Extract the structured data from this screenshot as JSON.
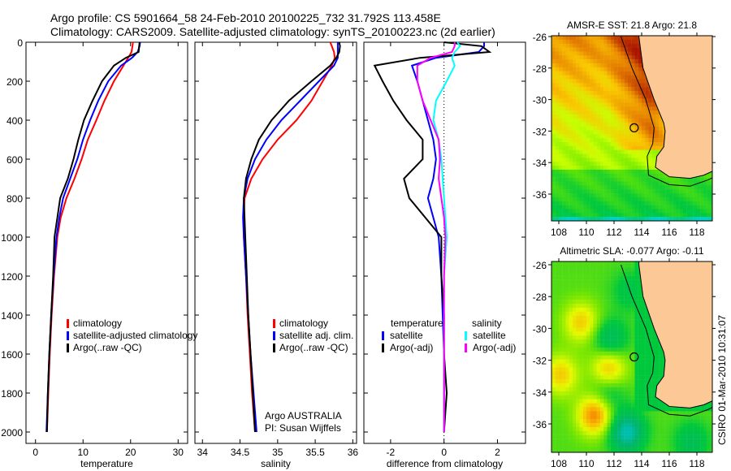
{
  "header": {
    "line1": "Argo profile: CS 5901664_58 24-Feb-2010 20100225_732 31.792S 113.458E",
    "line2": "Climatology: CARS2009. Satellite-adjusted climatology: synTS_20100223.nc (2d earlier)"
  },
  "footer_stamp": "CSIRO 01-Mar-2010 10:31:07",
  "colors": {
    "climatology": "#ff0000",
    "satellite": "#0000ff",
    "argo": "#000000",
    "sal_sat": "#00ffff",
    "sal_argo": "#ff00ff",
    "land": "#fbc896"
  },
  "chart_data": [
    {
      "type": "line",
      "xlabel": "temperature",
      "xlim": [
        -2,
        32
      ],
      "ylim": [
        0,
        2050
      ],
      "xticks": [
        "0",
        "10",
        "20",
        "30"
      ],
      "yticks": [
        "0",
        "200",
        "400",
        "600",
        "800",
        "1000",
        "1200",
        "1400",
        "1600",
        "1800",
        "2000"
      ],
      "legend": [
        "climatology",
        "satellite-adjusted climatology",
        "Argo(..raw -QC)"
      ],
      "depth": [
        0,
        20,
        50,
        80,
        120,
        200,
        300,
        400,
        500,
        600,
        700,
        800,
        900,
        1000,
        1200,
        1400,
        1600,
        1800,
        2000
      ],
      "series": [
        {
          "name": "climatology",
          "color": "#ff0000",
          "values": [
            20.5,
            20.4,
            20.2,
            19.5,
            18.5,
            16.5,
            14.5,
            12.8,
            11.0,
            9.7,
            8.2,
            6.5,
            5.3,
            4.6,
            3.9,
            3.4,
            3.0,
            2.7,
            2.4
          ]
        },
        {
          "name": "satellite-adjusted climatology",
          "color": "#0000ff",
          "values": [
            22.0,
            21.9,
            21.5,
            20.3,
            18.0,
            15.3,
            13.2,
            11.5,
            10.0,
            8.8,
            7.3,
            5.8,
            5.0,
            4.4,
            3.8,
            3.3,
            2.9,
            2.6,
            2.3
          ]
        },
        {
          "name": "Argo(..raw -QC)",
          "color": "#000000",
          "values": [
            21.9,
            21.8,
            21.7,
            19.0,
            16.5,
            14.0,
            12.0,
            10.2,
            9.0,
            8.0,
            6.8,
            5.2,
            4.6,
            4.0,
            3.7,
            3.3,
            2.9,
            2.6,
            2.4
          ]
        }
      ]
    },
    {
      "type": "line",
      "xlabel": "salinity",
      "xlim": [
        33.9,
        36.05
      ],
      "ylim": [
        0,
        2050
      ],
      "xticks": [
        "34",
        "34.5",
        "35",
        "35.5",
        "36"
      ],
      "legend": [
        "climatology",
        "satellite adj. clim.",
        "Argo(..raw -QC)"
      ],
      "annotation": [
        "Argo AUSTRALIA",
        "PI: Susan Wijffels"
      ],
      "depth": [
        0,
        20,
        50,
        80,
        120,
        200,
        300,
        400,
        500,
        600,
        700,
        800,
        900,
        1000,
        1200,
        1400,
        1600,
        1800,
        2000
      ],
      "series": [
        {
          "name": "climatology",
          "color": "#ff0000",
          "values": [
            35.7,
            35.72,
            35.75,
            35.76,
            35.72,
            35.6,
            35.45,
            35.25,
            35.0,
            34.8,
            34.65,
            34.56,
            34.55,
            34.55,
            34.58,
            34.6,
            34.63,
            34.66,
            34.7
          ]
        },
        {
          "name": "satellite adj. clim.",
          "color": "#0000ff",
          "values": [
            35.8,
            35.8,
            35.8,
            35.8,
            35.75,
            35.55,
            35.3,
            35.05,
            34.85,
            34.7,
            34.6,
            34.55,
            34.54,
            34.55,
            34.58,
            34.61,
            34.64,
            34.68,
            34.72
          ]
        },
        {
          "name": "Argo(..raw -QC)",
          "color": "#000000",
          "values": [
            35.82,
            35.83,
            35.82,
            35.78,
            35.7,
            35.45,
            35.15,
            34.92,
            34.75,
            34.65,
            34.58,
            34.55,
            34.56,
            34.57,
            34.59,
            34.61,
            34.64,
            34.67,
            34.7
          ]
        }
      ]
    },
    {
      "type": "line",
      "xlabel": "difference from climatology",
      "xlim": [
        -3,
        3.05
      ],
      "ylim": [
        0,
        2050
      ],
      "xticks": [
        "-2",
        "0",
        "2"
      ],
      "legend": {
        "temperature_title": "temperature",
        "salinity_title": "salinity",
        "items": [
          "satellite",
          "Argo(-adj)",
          "satellite",
          "Argo(-adj)"
        ]
      },
      "depth": [
        0,
        20,
        50,
        80,
        120,
        200,
        300,
        400,
        500,
        600,
        700,
        800,
        900,
        1000,
        1200,
        1400,
        1600,
        1800,
        2000
      ],
      "series": [
        {
          "name": "temperature satellite",
          "color": "#0000ff",
          "values": [
            1.5,
            1.5,
            1.3,
            -0.3,
            -1.2,
            -1.0,
            -0.8,
            -0.6,
            -0.4,
            -0.3,
            -0.4,
            -0.6,
            -0.4,
            -0.2,
            -0.1,
            -0.05,
            0,
            0,
            0
          ]
        },
        {
          "name": "temperature Argo(-adj)",
          "color": "#000000",
          "values": [
            0,
            1.4,
            1.7,
            -0.9,
            -2.6,
            -2.3,
            -1.9,
            -1.4,
            -0.8,
            -0.8,
            -1.5,
            -1.3,
            -0.7,
            -0.1,
            -0.1,
            0,
            0,
            0.1,
            0
          ]
        },
        {
          "name": "salinity satellite",
          "color": "#00ffff",
          "values": [
            0.5,
            0.6,
            0.4,
            0.3,
            0.4,
            0.1,
            -0.3,
            -0.4,
            -0.2,
            -0.1,
            -0.05,
            0,
            0.05,
            0.1,
            0,
            0,
            0,
            0,
            0
          ]
        },
        {
          "name": "salinity Argo(-adj)",
          "color": "#ff00ff",
          "values": [
            0.4,
            0.4,
            0.3,
            -0.5,
            -1.0,
            -1.0,
            -0.8,
            -0.5,
            -0.2,
            -0.15,
            -0.2,
            -0.1,
            0,
            0.05,
            0,
            0,
            0,
            0,
            0
          ]
        }
      ]
    },
    {
      "type": "heatmap",
      "title": "AMSR-E SST: 21.8 Argo: 21.8",
      "xticks": [
        "108",
        "110",
        "112",
        "114",
        "116",
        "118"
      ],
      "yticks": [
        "-26",
        "-28",
        "-30",
        "-32",
        "-34",
        "-36"
      ],
      "profile_location": {
        "lon": 113.458,
        "lat": -31.792
      }
    },
    {
      "type": "heatmap",
      "title": "Altimetric SLA: -0.077 Argo: -0.11",
      "xticks": [
        "108",
        "110",
        "112",
        "114",
        "116",
        "118"
      ],
      "yticks": [
        "-26",
        "-28",
        "-30",
        "-32",
        "-34",
        "-36"
      ],
      "profile_location": {
        "lon": 113.458,
        "lat": -31.792
      }
    }
  ]
}
